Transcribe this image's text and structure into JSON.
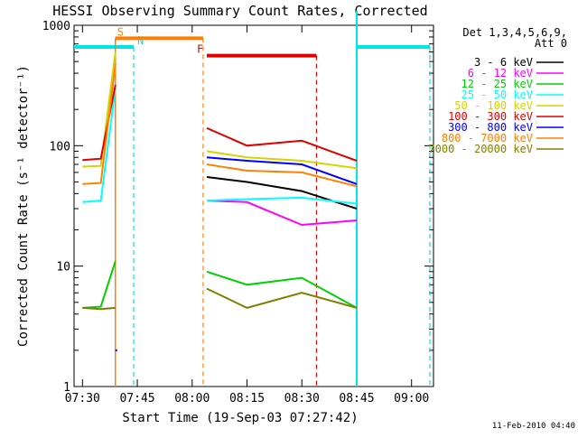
{
  "chart_data": {
    "type": "line",
    "title": "HESSI Observing Summary Count Rates, Corrected",
    "xlabel": "Start Time (19-Sep-03 07:27:42)",
    "ylabel": "Corrected Count Rate (s⁻¹ detector⁻¹)",
    "y_scale": "log",
    "ylim": [
      1,
      1000
    ],
    "xlim": [
      "07:27:42",
      "09:06:00"
    ],
    "x_ticks": [
      "07:30",
      "07:45",
      "08:00",
      "08:15",
      "08:30",
      "08:45",
      "09:00"
    ],
    "y_ticks": [
      "1",
      "10",
      "100",
      "1000"
    ],
    "legend_position": "right",
    "legend_header": [
      "Det 1,3,4,5,6,9,",
      "Att 0"
    ],
    "footer_date": "11-Feb-2010 04:40",
    "colors": {
      "axes": "#000000",
      "night": "#00e5e5",
      "saa": "#ff8000",
      "flare": "#e00000"
    },
    "series": [
      {
        "name": "3 - 6 keV",
        "color": "#000000",
        "values_before": [
          null,
          null,
          null
        ],
        "values_after": [
          55,
          50,
          42,
          30
        ]
      },
      {
        "name": "6 - 12 keV",
        "color": "#ff00ff",
        "values_before": [
          null,
          null,
          null
        ],
        "values_after": [
          35,
          34,
          22,
          24
        ]
      },
      {
        "name": "12 - 25 keV",
        "color": "#00d000",
        "values_before": [
          4.5,
          4.6,
          11
        ],
        "values_after": [
          9,
          7,
          8,
          4.5
        ]
      },
      {
        "name": "25 - 50 keV",
        "color": "#00ffff",
        "values_before": [
          34,
          35,
          300
        ],
        "values_after": [
          35,
          36,
          37,
          33
        ]
      },
      {
        "name": "50 - 100 keV",
        "color": "#d4d400",
        "values_before": [
          67,
          68,
          600
        ],
        "values_after": [
          90,
          80,
          75,
          65
        ]
      },
      {
        "name": "100 - 300 keV",
        "color": "#e00000",
        "values_before": [
          76,
          78,
          320
        ],
        "values_after": [
          140,
          100,
          110,
          75
        ]
      },
      {
        "name": "300 - 800 keV",
        "color": "#0000ff",
        "values_before": [
          null,
          null,
          2
        ],
        "values_after": [
          80,
          75,
          70,
          48
        ]
      },
      {
        "name": "800 - 7000 keV",
        "color": "#ff8000",
        "values_before": [
          48,
          49,
          480
        ],
        "values_after": [
          70,
          62,
          60,
          46
        ]
      },
      {
        "name": "7000 - 20000 keV",
        "color": "#808000",
        "values_before": [
          4.5,
          4.4,
          4.5
        ],
        "values_after": [
          6.5,
          4.5,
          6,
          4.5
        ]
      }
    ],
    "x_before": [
      "07:30",
      "07:35",
      "07:39"
    ],
    "x_after": [
      "08:04",
      "08:15",
      "08:30",
      "08:45"
    ],
    "markers": [
      {
        "label": "S",
        "start": "07:39",
        "end": "08:03",
        "color": "#ff8000",
        "value": 780
      },
      {
        "label": "N",
        "start": "07:27:42",
        "end": "07:44",
        "color": "#00e5e5",
        "value": 660
      },
      {
        "label": "F",
        "start": "08:04",
        "end": "08:34",
        "color": "#e00000",
        "value": 560
      }
    ],
    "night_end_2": {
      "start": "08:45",
      "end": "09:05",
      "color": "#00e5e5",
      "value": 660
    }
  }
}
